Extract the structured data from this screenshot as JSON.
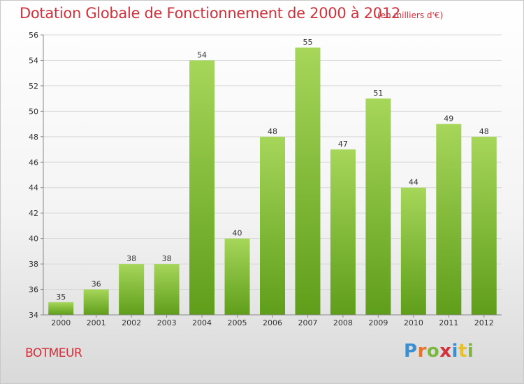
{
  "header": {
    "title": "Dotation Globale de Fonctionnement de 2000 à 2012",
    "subtitle": "(en milliers d'€)"
  },
  "footer": {
    "commune": "BOTMEUR",
    "logo_letters": [
      {
        "char": "P",
        "color": "#3a8fd0"
      },
      {
        "char": "r",
        "color": "#e8742a"
      },
      {
        "char": "o",
        "color": "#7ab640"
      },
      {
        "char": "x",
        "color": "#d2303a"
      },
      {
        "char": "i",
        "color": "#3a8fd0"
      },
      {
        "char": "t",
        "color": "#e8c12a"
      },
      {
        "char": "i",
        "color": "#7ab640"
      }
    ]
  },
  "colors": {
    "bar_top": "#a6d65a",
    "bar_bottom": "#5f9e1a",
    "grid": "#d8d8d8",
    "axis": "#888888",
    "text_accent": "#d2303a"
  },
  "chart_data": {
    "type": "bar",
    "title": "Dotation Globale de Fonctionnement de 2000 à 2012",
    "subtitle": "(en milliers d'€)",
    "xlabel": "",
    "ylabel": "",
    "categories": [
      "2000",
      "2001",
      "2002",
      "2003",
      "2004",
      "2005",
      "2006",
      "2007",
      "2008",
      "2009",
      "2010",
      "2011",
      "2012"
    ],
    "values": [
      35,
      36,
      38,
      38,
      54,
      40,
      48,
      55,
      47,
      51,
      44,
      49,
      48
    ],
    "ylim": [
      34,
      56
    ],
    "yticks": [
      34,
      36,
      38,
      40,
      42,
      44,
      46,
      48,
      50,
      52,
      54,
      56
    ],
    "grid": true,
    "legend": "none"
  }
}
